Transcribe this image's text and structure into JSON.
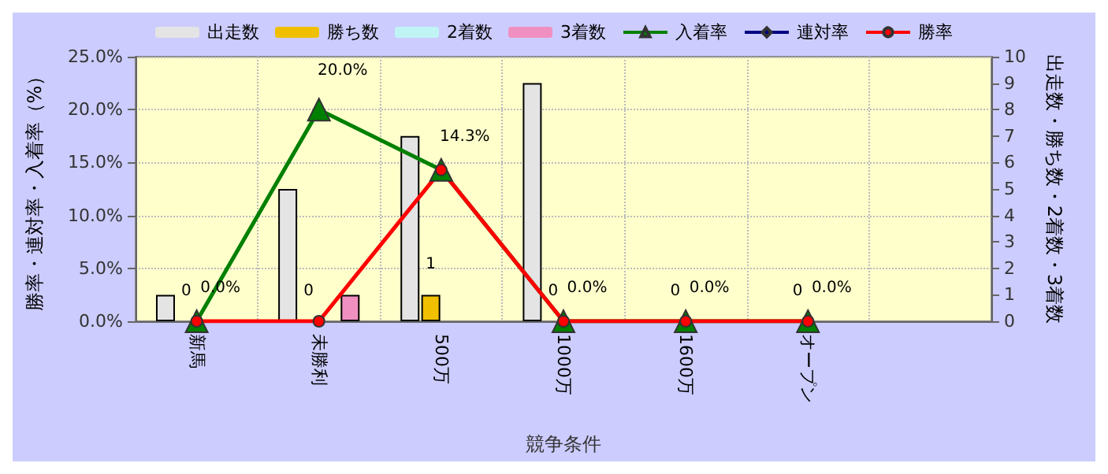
{
  "chart_data": {
    "type": "bar",
    "xlabel": "競争条件",
    "ylabel": "勝率・連対率・入着率（%）",
    "y2label": "出走数・勝ち数・2着数・3着数",
    "categories": [
      "新馬",
      "未勝利",
      "500万",
      "1000万",
      "1600万",
      "オープン",
      null
    ],
    "series": [
      {
        "name": "出走数",
        "axis": "y2",
        "color": "#e4e4e4",
        "values": [
          1,
          5,
          7,
          9,
          0,
          0,
          null
        ]
      },
      {
        "name": "勝ち数",
        "axis": "y2",
        "color": "#f0c000",
        "values": [
          0,
          0,
          1,
          0,
          0,
          0,
          null
        ],
        "value_labels": [
          "0",
          "0",
          "1",
          "0",
          "0",
          "0",
          null
        ]
      },
      {
        "name": "2着数",
        "axis": "y2",
        "color": "#c0f4f4",
        "values": [
          0,
          0,
          0,
          0,
          0,
          0,
          null
        ]
      },
      {
        "name": "3着数",
        "axis": "y2",
        "color": "#f090c0",
        "values": [
          0,
          1,
          0,
          0,
          0,
          0,
          null
        ]
      },
      {
        "name": "入着率",
        "type": "line",
        "color": "#008000",
        "marker": "triangle",
        "values": [
          0,
          20,
          14.3,
          0,
          0,
          0,
          null
        ],
        "value_labels": [
          null,
          "20.0%",
          null,
          null,
          null,
          null,
          null
        ]
      },
      {
        "name": "連対率",
        "type": "line",
        "color": "#000080",
        "marker": "diamond",
        "values": [
          null,
          null,
          null,
          null,
          null,
          null,
          null
        ]
      },
      {
        "name": "勝率",
        "type": "line",
        "color": "#ff0000",
        "marker": "circle",
        "values": [
          0,
          0,
          14.3,
          0,
          0,
          0,
          null
        ],
        "value_labels": [
          "0.0%",
          null,
          "14.3%",
          "0.0%",
          "0.0%",
          "0.0%",
          null
        ]
      }
    ],
    "ylim": [
      0,
      25
    ],
    "yticks": [
      {
        "value": 0,
        "label": "0.0%"
      },
      {
        "value": 5,
        "label": "5.0%"
      },
      {
        "value": 10,
        "label": "10.0%"
      },
      {
        "value": 15,
        "label": "15.0%"
      },
      {
        "value": 20,
        "label": "20.0%"
      },
      {
        "value": 25,
        "label": "25.0%"
      }
    ],
    "y2lim": [
      0,
      10
    ],
    "y2ticks": [
      0,
      1,
      2,
      3,
      4,
      5,
      6,
      7,
      8,
      9,
      10
    ],
    "grid": true,
    "legend": "top",
    "line_style": "solid"
  }
}
